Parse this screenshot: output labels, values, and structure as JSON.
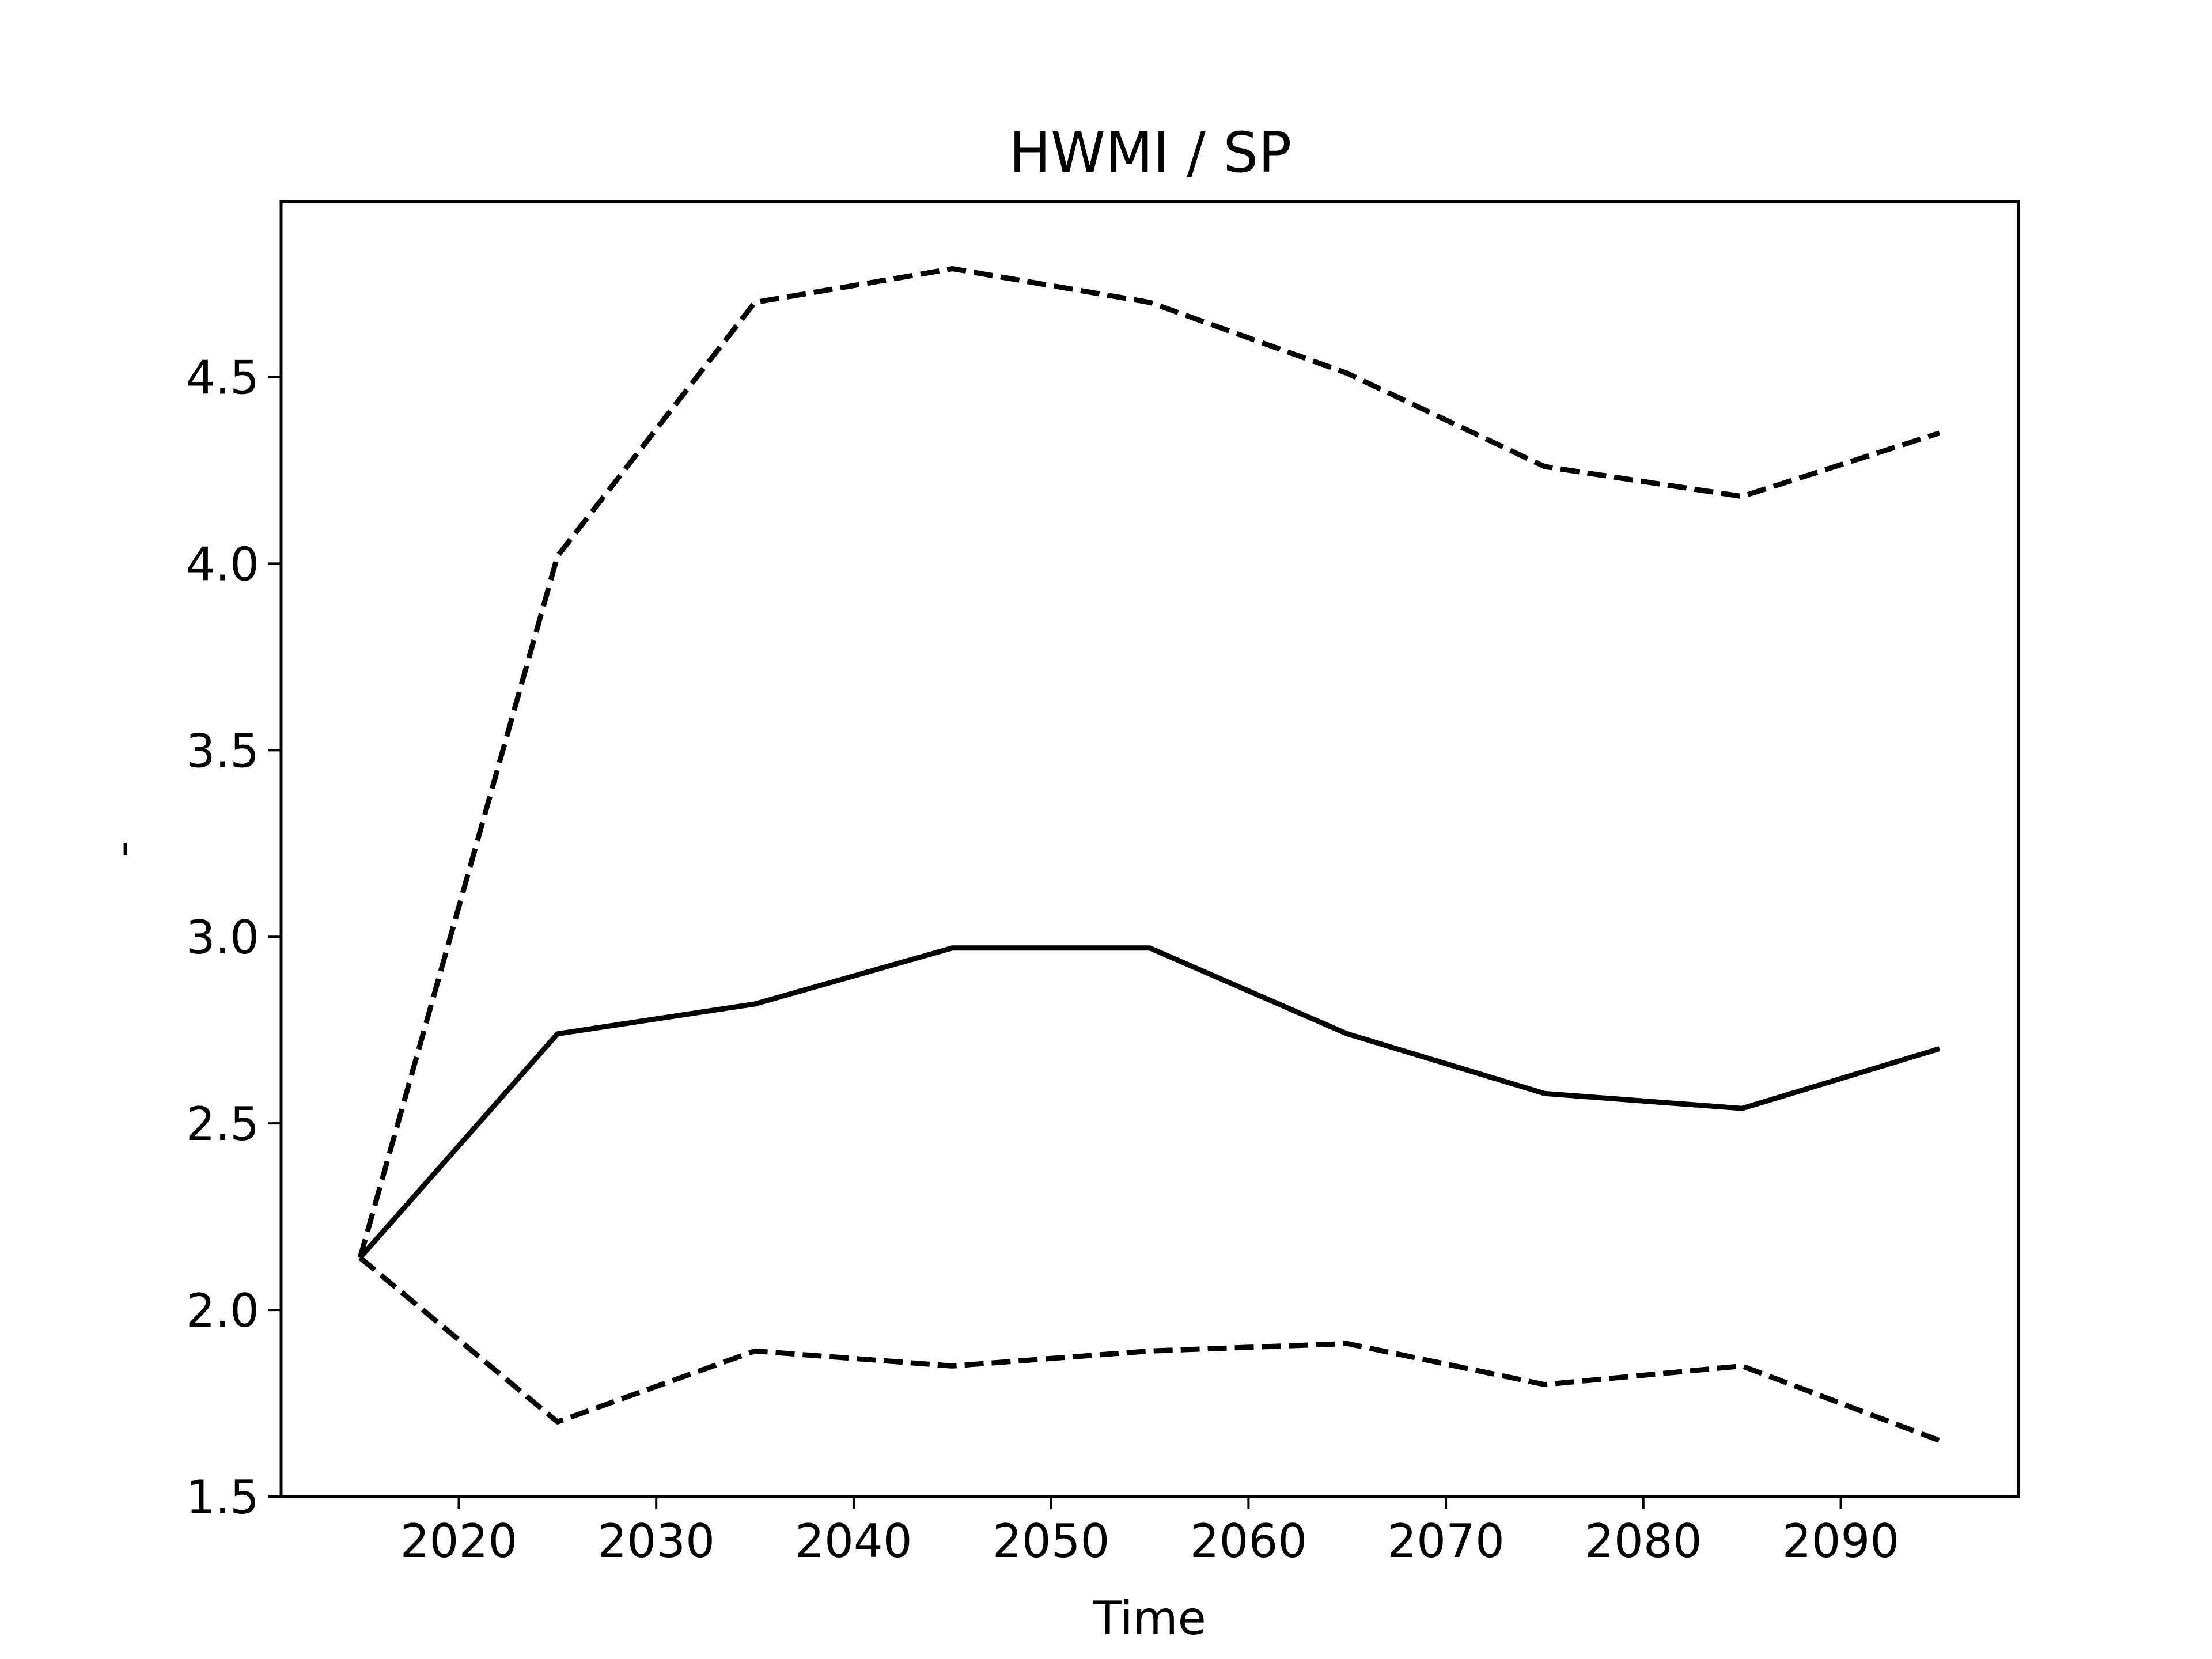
{
  "chart_data": {
    "type": "line",
    "title": "HWMI / SP",
    "xlabel": "Time",
    "ylabel": "-",
    "xlim": [
      2011,
      2099
    ],
    "ylim": [
      1.5,
      4.97
    ],
    "xticks": [
      2020,
      2030,
      2040,
      2050,
      2060,
      2070,
      2080,
      2090
    ],
    "yticks": [
      1.5,
      2.0,
      2.5,
      3.0,
      3.5,
      4.0,
      4.5
    ],
    "ytick_labels": [
      "1.5",
      "2.0",
      "2.5",
      "3.0",
      "3.5",
      "4.0",
      "4.5"
    ],
    "grid": false,
    "legend": "none",
    "x": [
      2015,
      2025,
      2035,
      2045,
      2055,
      2065,
      2075,
      2085,
      2095
    ],
    "series": [
      {
        "style": "dashed",
        "color": "#000000",
        "values": [
          2.14,
          4.02,
          4.7,
          4.79,
          4.7,
          4.51,
          4.26,
          4.18,
          4.35
        ]
      },
      {
        "style": "solid",
        "color": "#000000",
        "values": [
          2.14,
          2.74,
          2.82,
          2.97,
          2.97,
          2.74,
          2.58,
          2.54,
          2.7
        ]
      },
      {
        "style": "dashed",
        "color": "#000000",
        "values": [
          2.14,
          1.7,
          1.89,
          1.85,
          1.89,
          1.91,
          1.8,
          1.85,
          1.65
        ]
      }
    ]
  }
}
